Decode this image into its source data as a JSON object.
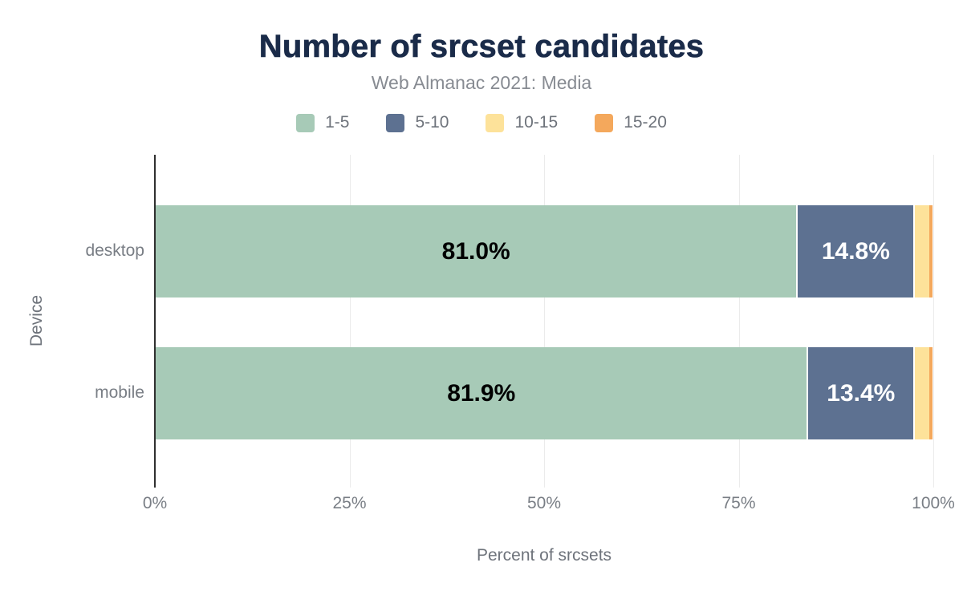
{
  "chart": {
    "title": "Number of srcset candidates",
    "subtitle": "Web Almanac 2021: Media",
    "x_axis_label": "Percent of srcsets",
    "y_axis_label": "Device"
  },
  "colors": {
    "title": "#1a2b49",
    "subtitle": "#878b92",
    "axis_text": "#797e85",
    "grid": "#ebebeb",
    "axis_line": "#2f2f2f",
    "background": "#ffffff"
  },
  "chart_data": {
    "type": "bar",
    "orientation": "horizontal",
    "stacked": true,
    "title": "Number of srcset candidates",
    "subtitle": "Web Almanac 2021: Media",
    "xlabel": "Percent of srcsets",
    "ylabel": "Device",
    "xlim": [
      0,
      100
    ],
    "grid": true,
    "legend_position": "top",
    "categories": [
      "desktop",
      "mobile"
    ],
    "x_ticks": [
      {
        "label": "0%",
        "value": 0
      },
      {
        "label": "25%",
        "value": 25
      },
      {
        "label": "50%",
        "value": 50
      },
      {
        "label": "75%",
        "value": 75
      },
      {
        "label": "100%",
        "value": 100
      }
    ],
    "series": [
      {
        "name": "1-5",
        "color": "#a7cab7",
        "values": [
          81.0,
          81.9
        ],
        "data_labels": [
          "81.0%",
          "81.9%"
        ],
        "data_label_color": "#000000"
      },
      {
        "name": "5-10",
        "color": "#5d7191",
        "values": [
          14.8,
          13.4
        ],
        "data_labels": [
          "14.8%",
          "13.4%"
        ],
        "data_label_color": "#ffffff"
      },
      {
        "name": "10-15",
        "color": "#fde29a",
        "values": [
          2.0,
          2.0
        ],
        "data_labels": [
          "",
          ""
        ],
        "data_label_color": "#000000"
      },
      {
        "name": "15-20",
        "color": "#f4a85c",
        "values": [
          0.4,
          0.4
        ],
        "data_labels": [
          "",
          ""
        ],
        "data_label_color": "#000000"
      }
    ]
  }
}
